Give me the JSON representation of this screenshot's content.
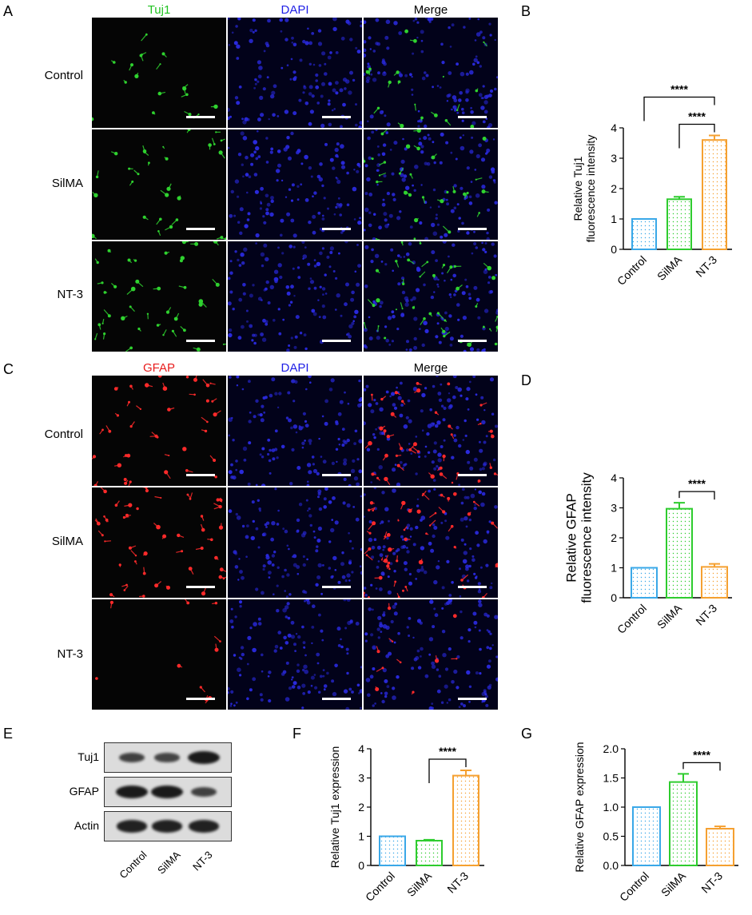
{
  "panel_letters": [
    "A",
    "B",
    "C",
    "D",
    "E",
    "F",
    "G"
  ],
  "section_a": {
    "headers": [
      "Tuj1",
      "DAPI",
      "Merge"
    ],
    "header_colors": [
      "#22c322",
      "#1e1ee6",
      "#000000"
    ],
    "rows": [
      "Control",
      "SilMA",
      "NT-3"
    ]
  },
  "section_c": {
    "headers": [
      "GFAP",
      "DAPI",
      "Merge"
    ],
    "header_colors": [
      "#e81c1c",
      "#1e1ee6",
      "#000000"
    ],
    "rows": [
      "Control",
      "SilMA",
      "NT-3"
    ]
  },
  "western_blot": {
    "rows": [
      "Tuj1",
      "GFAP",
      "Actin"
    ],
    "lanes": [
      "Control",
      "SilMA",
      "NT-3"
    ],
    "band_intensity": [
      [
        0.55,
        0.5,
        1.0
      ],
      [
        1.0,
        1.0,
        0.55
      ],
      [
        0.9,
        0.9,
        0.9
      ]
    ]
  },
  "colors": {
    "control": "#3aa8e8",
    "silma": "#2ecc2e",
    "nt3": "#f5a030"
  },
  "chart_data": [
    {
      "panel": "B",
      "type": "bar",
      "categories": [
        "Control",
        "SilMA",
        "NT-3"
      ],
      "values": [
        1.0,
        1.65,
        3.6
      ],
      "errors": [
        0.0,
        0.08,
        0.15
      ],
      "ylabel": [
        "Relative Tuj1",
        "fluorescence intensity"
      ],
      "ylim": [
        0,
        4
      ],
      "yticks": [
        "0",
        "1",
        "2",
        "3",
        "4"
      ],
      "significance": [
        {
          "from": 0,
          "to": 2,
          "label": "****"
        },
        {
          "from": 1,
          "to": 2,
          "label": "****"
        }
      ]
    },
    {
      "panel": "D",
      "type": "bar",
      "categories": [
        "Control",
        "SilMA",
        "NT-3"
      ],
      "values": [
        1.0,
        2.97,
        1.03
      ],
      "errors": [
        0.0,
        0.2,
        0.1
      ],
      "ylabel": [
        "Relative GFAP",
        "fluorescence intensity"
      ],
      "ylim": [
        0,
        4
      ],
      "yticks": [
        "0",
        "1",
        "2",
        "3",
        "4"
      ],
      "significance": [
        {
          "from": 1,
          "to": 2,
          "label": "****"
        }
      ]
    },
    {
      "panel": "F",
      "type": "bar",
      "categories": [
        "Control",
        "SilMA",
        "NT-3"
      ],
      "values": [
        1.0,
        0.85,
        3.08
      ],
      "errors": [
        0.0,
        0.03,
        0.18
      ],
      "ylabel": [
        "Relative Tuj1 expression"
      ],
      "ylim": [
        0,
        4
      ],
      "yticks": [
        "0",
        "1",
        "2",
        "3",
        "4"
      ],
      "significance": [
        {
          "from": 1,
          "to": 2,
          "label": "****"
        }
      ]
    },
    {
      "panel": "G",
      "type": "bar",
      "categories": [
        "Control",
        "SilMA",
        "NT-3"
      ],
      "values": [
        1.0,
        1.43,
        0.63
      ],
      "errors": [
        0.0,
        0.14,
        0.04
      ],
      "ylabel": [
        "Relative GFAP expression"
      ],
      "ylim": [
        0,
        2.0
      ],
      "yticks": [
        "0.0",
        "0.5",
        "1.0",
        "1.5",
        "2.0"
      ],
      "significance": [
        {
          "from": 1,
          "to": 2,
          "label": "****"
        }
      ]
    }
  ]
}
